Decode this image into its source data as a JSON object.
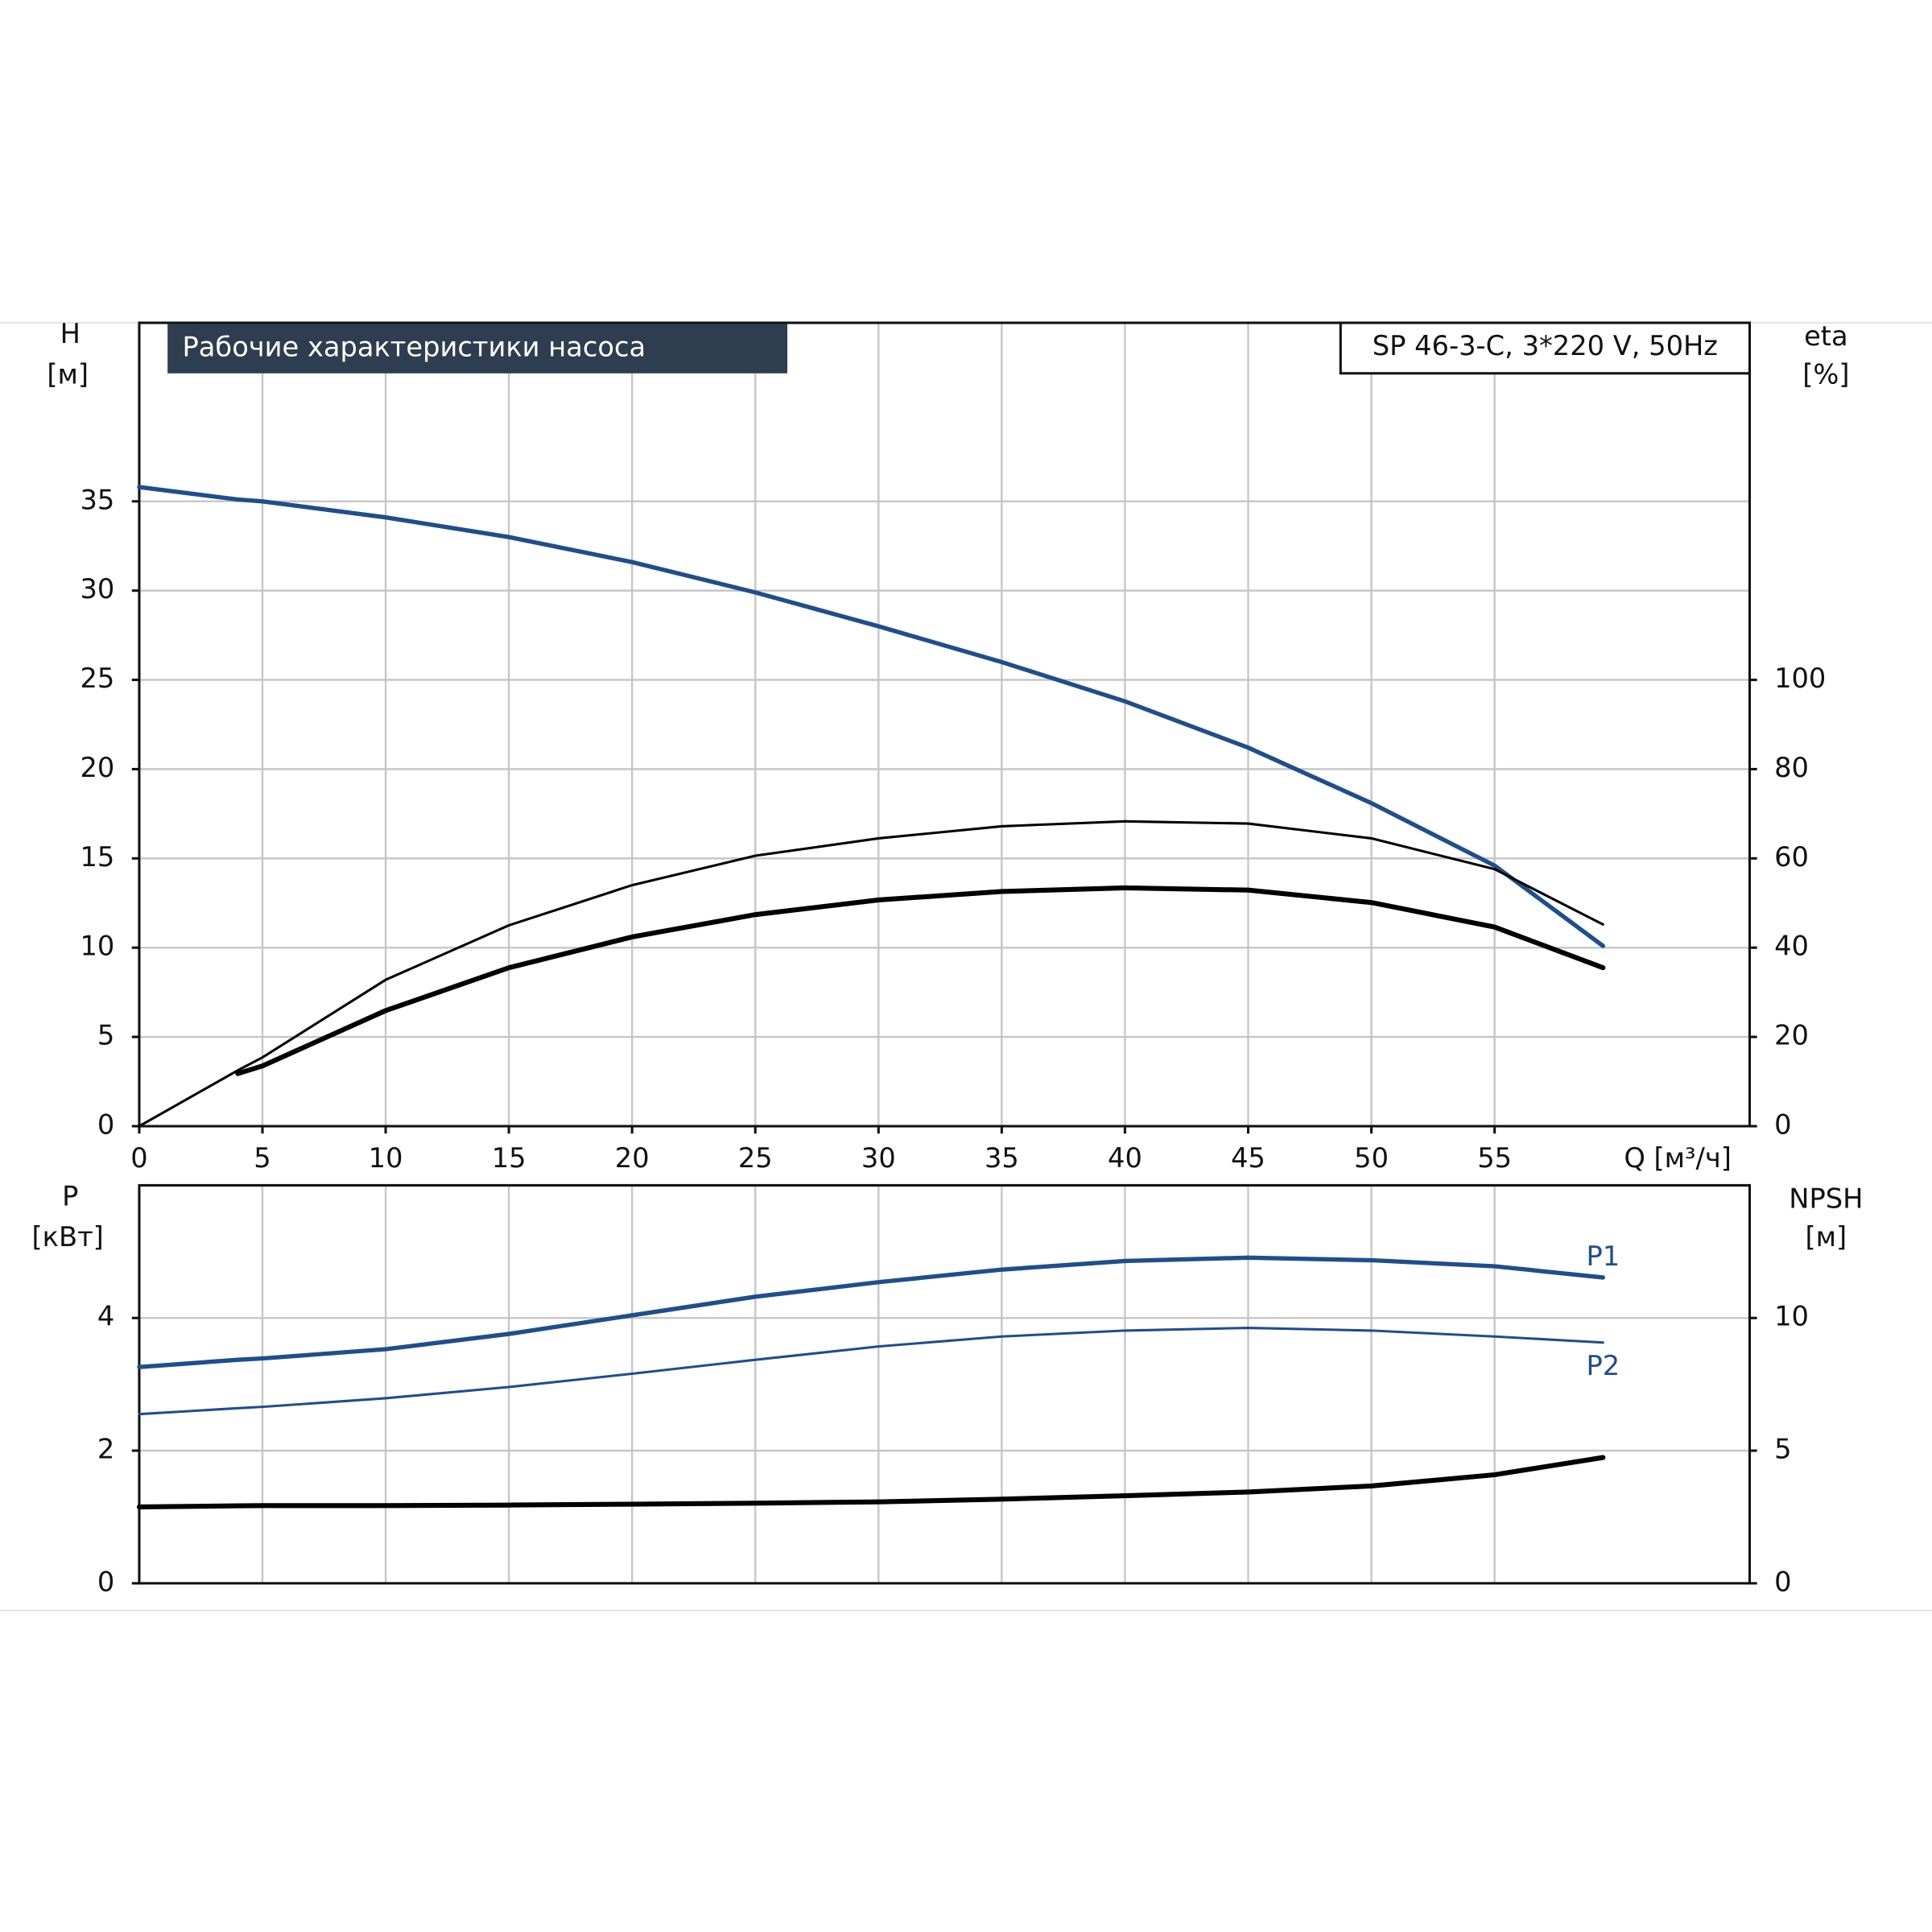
{
  "chart_data": [
    {
      "type": "line",
      "title": "Рабочие характеристики насоса",
      "subtitle": "SP 46-3-C, 3*220 V, 50Hz",
      "x": [
        0,
        4,
        5,
        10,
        15,
        20,
        25,
        30,
        35,
        40,
        45,
        50,
        55,
        59.4
      ],
      "xlim": [
        0,
        65.35
      ],
      "xticks": [
        0,
        5,
        10,
        15,
        20,
        25,
        30,
        35,
        40,
        45,
        50,
        55
      ],
      "xlabel": "Q [м³/ч]",
      "ylabel": "H",
      "yunit": "[м]",
      "ylim": [
        0,
        45
      ],
      "yticks": [
        0,
        5,
        10,
        15,
        20,
        25,
        30,
        35
      ],
      "y2label": "eta",
      "y2unit": "[%]",
      "y2lim": [
        0,
        180
      ],
      "y2ticks": [
        0,
        20,
        40,
        60,
        80,
        100
      ],
      "grid": true,
      "series": [
        {
          "color": "#1f4e8c",
          "line_width": 3.5,
          "values": [
            35.8,
            35.1,
            35.0,
            34.1,
            33.0,
            31.6,
            29.9,
            28.0,
            26.0,
            23.8,
            21.2,
            18.1,
            14.6,
            10.1
          ]
        },
        {
          "color": "#000000",
          "line_width": 2,
          "axis": "y2",
          "values": [
            0,
            12.5,
            15.4,
            32.8,
            45,
            54,
            60.6,
            64.5,
            67.2,
            68.3,
            67.8,
            64.5,
            57.6,
            45.2
          ]
        },
        {
          "color": "#000000",
          "line_width": 4,
          "axis": "y2",
          "values": [
            null,
            11.8,
            13.5,
            25.9,
            35.5,
            42.4,
            47.4,
            50.7,
            52.6,
            53.4,
            52.9,
            50.1,
            44.6,
            35.5
          ]
        }
      ]
    },
    {
      "type": "line",
      "x": [
        0,
        4,
        5,
        10,
        15,
        20,
        25,
        30,
        35,
        40,
        45,
        50,
        55,
        59.4
      ],
      "xlim": [
        0,
        65.35
      ],
      "ylabel": "P",
      "yunit": "[кВт]",
      "ylim": [
        0,
        6
      ],
      "yticks": [
        0,
        2,
        4
      ],
      "y2label": "NPSH",
      "y2unit": "[м]",
      "y2lim": [
        0,
        15
      ],
      "y2ticks": [
        0,
        5,
        10
      ],
      "grid": true,
      "series": [
        {
          "name": "P1",
          "color": "#1f4e8c",
          "line_width": 3.5,
          "values": [
            3.26,
            3.37,
            3.39,
            3.53,
            3.76,
            4.04,
            4.32,
            4.54,
            4.73,
            4.86,
            4.91,
            4.87,
            4.78,
            4.61
          ]
        },
        {
          "name": "P2",
          "color": "#1f4e8c",
          "line_width": 2,
          "values": [
            2.55,
            2.64,
            2.66,
            2.79,
            2.96,
            3.16,
            3.37,
            3.57,
            3.72,
            3.81,
            3.85,
            3.81,
            3.72,
            3.63
          ]
        },
        {
          "color": "#000000",
          "line_width": 4,
          "axis": "y2",
          "values": [
            2.88,
            2.92,
            2.93,
            2.93,
            2.95,
            2.98,
            3.02,
            3.07,
            3.17,
            3.3,
            3.44,
            3.67,
            4.09,
            4.74
          ]
        }
      ]
    }
  ]
}
